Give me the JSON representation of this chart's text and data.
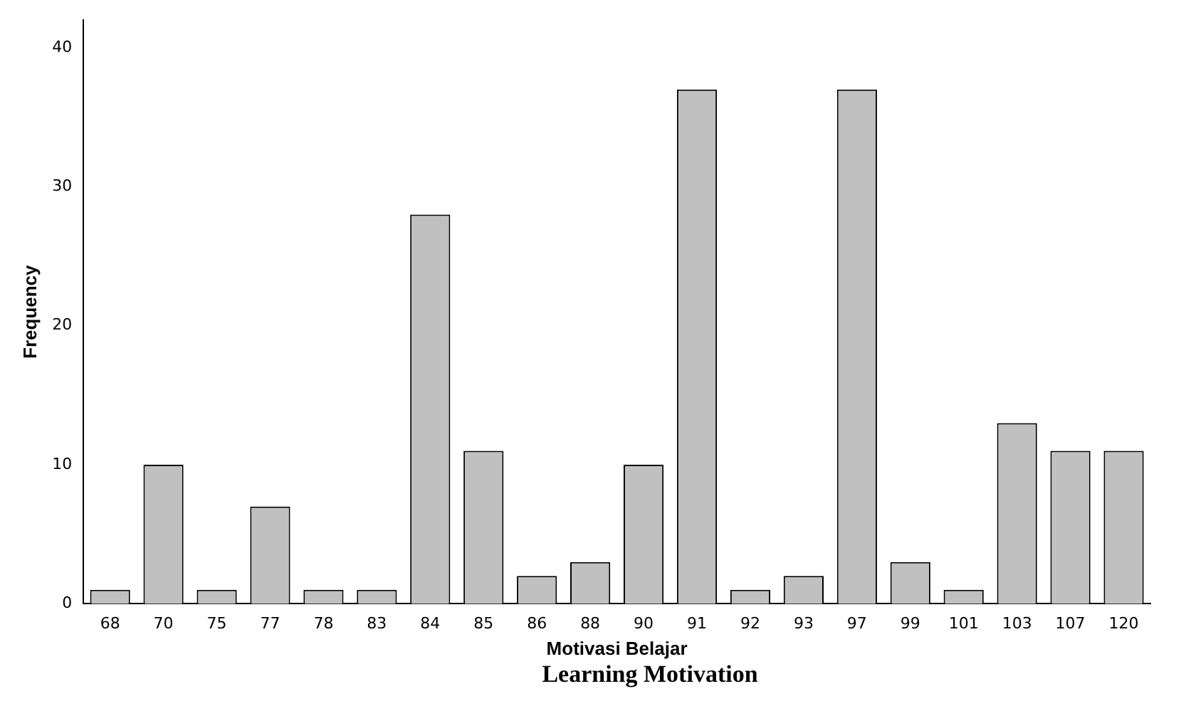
{
  "chart_data": {
    "type": "bar",
    "xlabel": "Motivasi Belajar",
    "ylabel": "Frequency",
    "categories": [
      "68",
      "70",
      "75",
      "77",
      "78",
      "83",
      "84",
      "85",
      "86",
      "88",
      "90",
      "91",
      "92",
      "93",
      "97",
      "99",
      "101",
      "103",
      "107",
      "120"
    ],
    "values": [
      1,
      10,
      1,
      7,
      1,
      1,
      28,
      11,
      2,
      3,
      10,
      37,
      1,
      2,
      37,
      3,
      1,
      13,
      11,
      11
    ],
    "color": "#c0c0c0",
    "ylim": [
      0,
      42
    ],
    "yticks": [
      0,
      10,
      20,
      30,
      40
    ],
    "grid": false,
    "legend": false,
    "annotations": [
      "Learning Motivation"
    ]
  }
}
